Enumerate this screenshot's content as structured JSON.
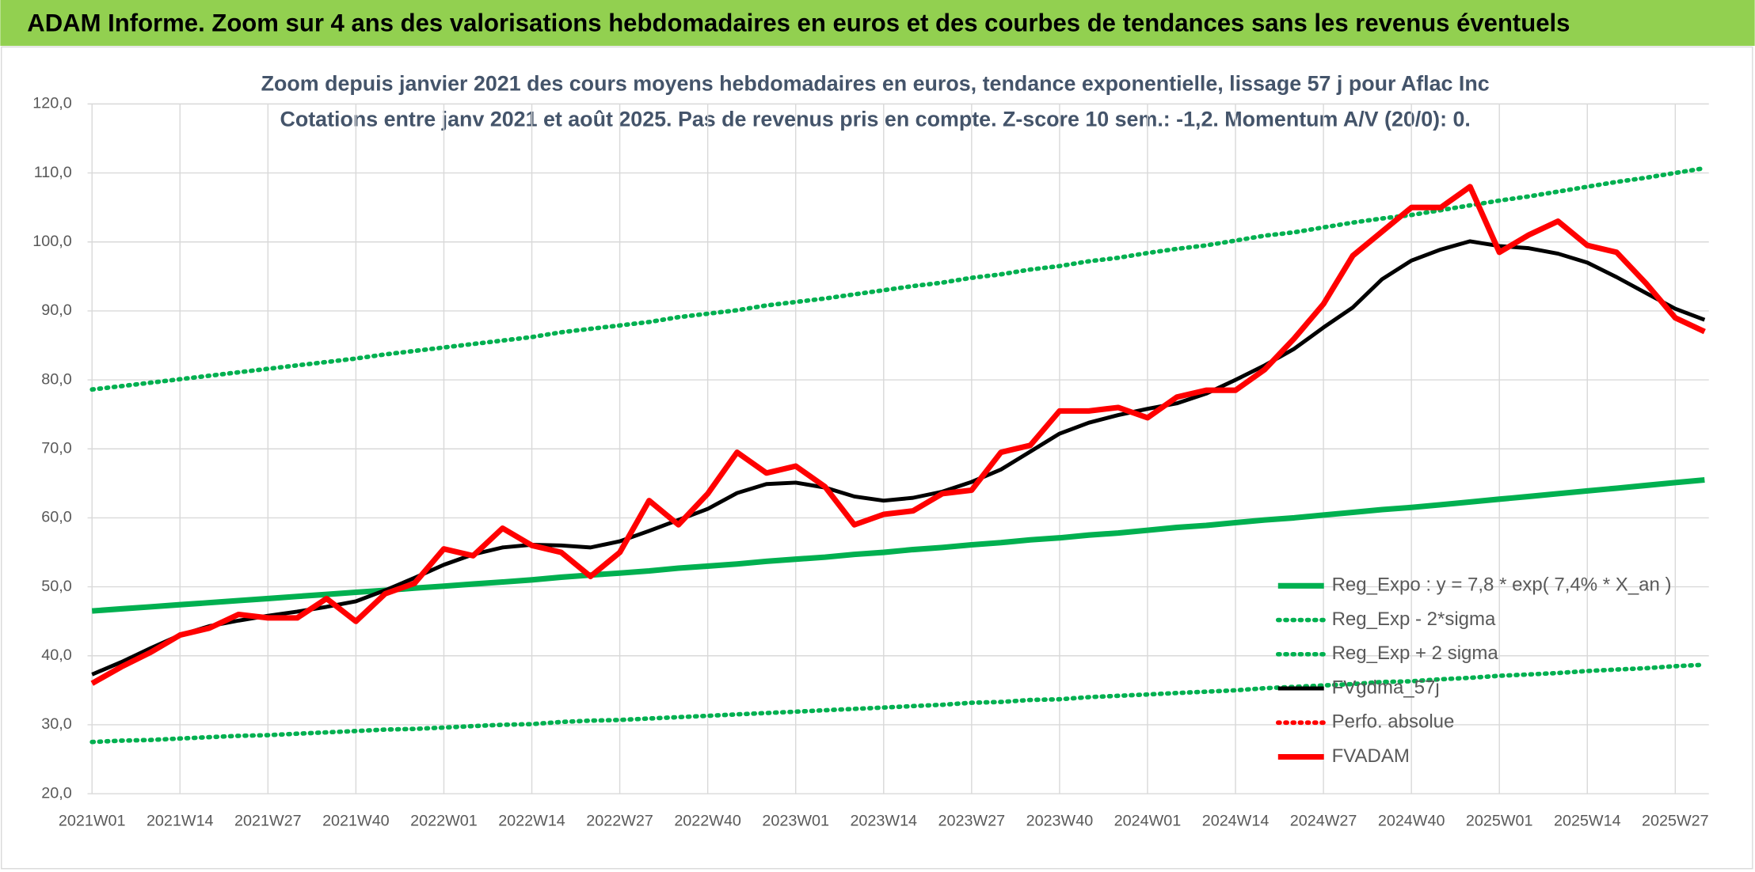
{
  "chart_data": {
    "type": "line",
    "header": "ADAM Informe. Zoom sur 4 ans des valorisations hebdomadaires en euros et des courbes de tendances sans les revenus éventuels",
    "title": "Zoom depuis janvier 2021 des cours moyens hebdomadaires en euros, tendance exponentielle, lissage 57 j pour Aflac Inc",
    "subtitle": "Cotations entre janv 2021 et août 2025. Pas de revenus pris en compte. Z-score 10 sem.: -1,2. Momentum A/V (20/0): 0.",
    "categories": [
      "2021W01",
      null,
      null,
      "2021W14",
      null,
      null,
      "2021W27",
      null,
      null,
      "2021W40",
      null,
      null,
      "2022W01",
      null,
      null,
      "2022W14",
      null,
      null,
      "2022W27",
      null,
      null,
      "2022W40",
      null,
      null,
      "2023W01",
      null,
      null,
      "2023W14",
      null,
      null,
      "2023W27",
      null,
      null,
      "2023W40",
      null,
      null,
      "2024W01",
      null,
      null,
      "2024W14",
      null,
      null,
      "2024W27",
      null,
      null,
      "2024W40",
      null,
      null,
      "2025W01",
      null,
      null,
      "2025W14",
      null,
      null,
      "2025W27",
      null
    ],
    "ylim": [
      20,
      120
    ],
    "yticks": [
      {
        "value": 20,
        "label": "20,0"
      },
      {
        "value": 30,
        "label": "30,0"
      },
      {
        "value": 40,
        "label": "40,0"
      },
      {
        "value": 50,
        "label": "50,0"
      },
      {
        "value": 60,
        "label": "60,0"
      },
      {
        "value": 70,
        "label": "70,0"
      },
      {
        "value": 80,
        "label": "80,0"
      },
      {
        "value": 90,
        "label": "90,0"
      },
      {
        "value": 100,
        "label": "100,0"
      },
      {
        "value": 110,
        "label": "110,0"
      },
      {
        "value": 120,
        "label": "120,0"
      }
    ],
    "grid": true,
    "legend": "lower right",
    "series": [
      {
        "name": "Reg_Expo : y = 7,8 * exp( 7,4% *  X_an )",
        "color": "#00b050",
        "style": "solid",
        "values": [
          46.5,
          46.8,
          47.1,
          47.4,
          47.7,
          48.0,
          48.3,
          48.6,
          48.9,
          49.2,
          49.5,
          49.8,
          50.1,
          50.4,
          50.7,
          51.0,
          51.4,
          51.7,
          52.0,
          52.3,
          52.7,
          53.0,
          53.3,
          53.7,
          54.0,
          54.3,
          54.7,
          55.0,
          55.4,
          55.7,
          56.1,
          56.4,
          56.8,
          57.1,
          57.5,
          57.8,
          58.2,
          58.6,
          58.9,
          59.3,
          59.7,
          60.0,
          60.4,
          60.8,
          61.2,
          61.5,
          61.9,
          62.3,
          62.7,
          63.1,
          63.5,
          63.9,
          64.3,
          64.7,
          65.1,
          65.5
        ]
      },
      {
        "name": "Reg_Exp - 2*sigma",
        "color": "#00b050",
        "style": "dotted",
        "values": [
          27.5,
          27.7,
          27.8,
          28.0,
          28.2,
          28.4,
          28.5,
          28.7,
          28.9,
          29.1,
          29.3,
          29.4,
          29.6,
          29.8,
          30.0,
          30.1,
          30.4,
          30.6,
          30.7,
          30.9,
          31.1,
          31.3,
          31.5,
          31.7,
          31.9,
          32.1,
          32.3,
          32.5,
          32.7,
          32.9,
          33.2,
          33.3,
          33.6,
          33.7,
          34.0,
          34.2,
          34.4,
          34.6,
          34.8,
          35.0,
          35.3,
          35.5,
          35.7,
          35.9,
          36.2,
          36.3,
          36.6,
          36.8,
          37.1,
          37.3,
          37.5,
          37.8,
          38.0,
          38.2,
          38.5,
          38.7
        ]
      },
      {
        "name": "Reg_Exp + 2 sigma",
        "color": "#00b050",
        "style": "dotted",
        "values": [
          78.6,
          79.1,
          79.6,
          80.1,
          80.6,
          81.1,
          81.6,
          82.1,
          82.6,
          83.1,
          83.7,
          84.2,
          84.7,
          85.2,
          85.7,
          86.2,
          86.9,
          87.4,
          87.9,
          88.4,
          89.1,
          89.6,
          90.1,
          90.8,
          91.3,
          91.8,
          92.4,
          93.0,
          93.6,
          94.1,
          94.8,
          95.3,
          96.0,
          96.5,
          97.2,
          97.7,
          98.4,
          99.0,
          99.5,
          100.2,
          100.9,
          101.4,
          102.1,
          102.8,
          103.4,
          103.9,
          104.6,
          105.3,
          106.0,
          106.6,
          107.3,
          108.0,
          108.7,
          109.3,
          110.0,
          110.7
        ]
      },
      {
        "name": "FVgdma_57j",
        "color": "#000000",
        "style": "solid",
        "values": [
          37.3,
          39.1,
          41.1,
          43.0,
          44.3,
          45.1,
          45.8,
          46.4,
          47.1,
          47.9,
          49.5,
          51.3,
          53.2,
          54.7,
          55.7,
          56.1,
          56.0,
          55.7,
          56.6,
          58.1,
          59.7,
          61.3,
          63.6,
          64.9,
          65.1,
          64.4,
          63.1,
          62.5,
          62.9,
          63.8,
          65.2,
          67.0,
          69.6,
          72.2,
          73.8,
          74.9,
          75.8,
          76.6,
          78.0,
          80.0,
          82.1,
          84.5,
          87.6,
          90.5,
          94.6,
          97.3,
          98.9,
          100.1,
          99.4,
          99.1,
          98.3,
          97.0,
          94.9,
          92.6,
          90.3,
          88.7
        ]
      },
      {
        "name": "Perfo. absolue",
        "color": "#ff0000",
        "style": "dotted",
        "values": [
          null,
          null,
          null,
          null,
          null,
          null,
          null,
          null,
          null,
          null,
          null,
          null,
          null,
          null,
          null,
          null,
          null,
          null,
          null,
          null,
          null,
          null,
          null,
          null,
          null,
          null,
          null,
          null,
          null,
          null,
          null,
          null,
          null,
          null,
          null,
          null,
          null,
          null,
          null,
          null,
          null,
          null,
          null,
          null,
          null,
          null,
          null,
          null,
          null,
          null,
          null,
          null,
          null,
          null,
          null,
          null
        ]
      },
      {
        "name": "FVADAM",
        "color": "#ff0000",
        "style": "solid",
        "values": [
          36.0,
          38.4,
          40.5,
          43.0,
          44.0,
          46.0,
          45.5,
          45.5,
          48.3,
          45.0,
          49.0,
          50.5,
          55.5,
          54.5,
          58.5,
          56.0,
          55.0,
          51.5,
          55.0,
          62.5,
          59.0,
          63.5,
          69.5,
          66.5,
          67.5,
          64.5,
          59.0,
          60.5,
          61.0,
          63.5,
          64.0,
          69.5,
          70.5,
          75.5,
          75.5,
          76.0,
          74.5,
          77.5,
          78.5,
          78.5,
          81.5,
          86.0,
          91.0,
          98.0,
          101.5,
          105.0,
          105.0,
          108.0,
          98.5,
          101.0,
          103.0,
          99.5,
          98.5,
          94.0,
          89.0,
          87.0
        ]
      }
    ]
  }
}
